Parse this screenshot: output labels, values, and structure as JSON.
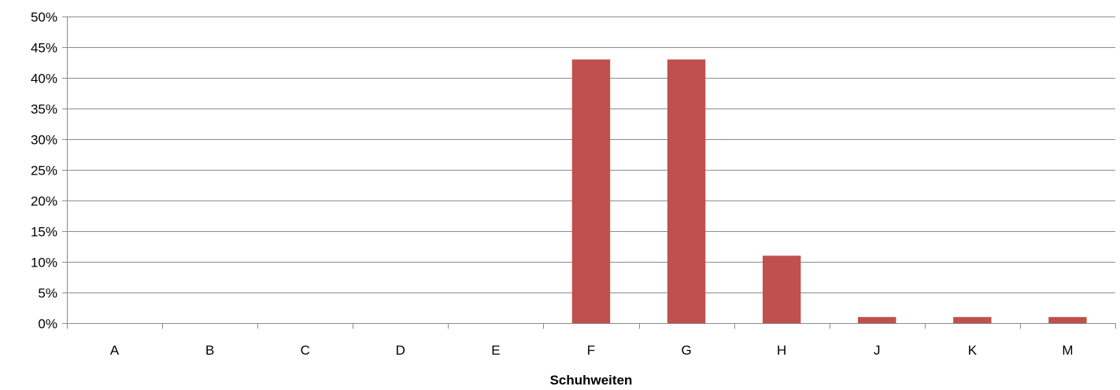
{
  "chart_data": {
    "type": "bar",
    "categories": [
      "A",
      "B",
      "C",
      "D",
      "E",
      "F",
      "G",
      "H",
      "J",
      "K",
      "M"
    ],
    "values": [
      0,
      0,
      0,
      0,
      0,
      43,
      43,
      11,
      1,
      1,
      1
    ],
    "value_unit": "%",
    "xlabel": "Schuhweiten",
    "ylabel": "",
    "title": "",
    "ylim": [
      0,
      50
    ],
    "ytick_step": 5,
    "ytick_labels": [
      "0%",
      "5%",
      "10%",
      "15%",
      "20%",
      "25%",
      "30%",
      "35%",
      "40%",
      "45%",
      "50%"
    ],
    "grid": "horizontal",
    "legend": "none",
    "bar_color": "#c0504d"
  }
}
